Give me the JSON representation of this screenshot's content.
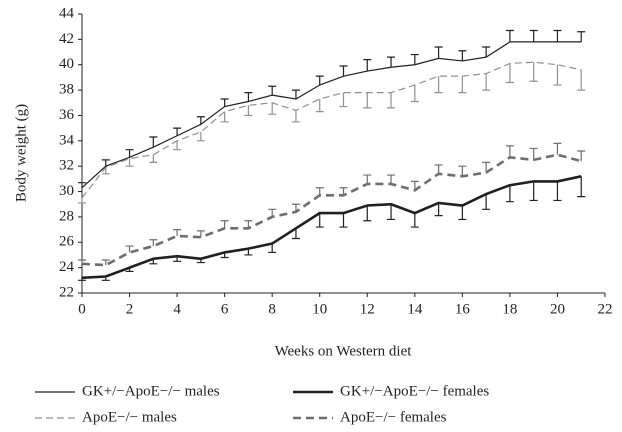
{
  "chart_data": {
    "type": "line",
    "x_label": "Weeks on Western diet",
    "y_label": "Body weight (g)",
    "x": [
      0,
      1,
      2,
      3,
      4,
      5,
      6,
      7,
      8,
      9,
      10,
      11,
      12,
      13,
      14,
      15,
      16,
      17,
      18,
      19,
      20,
      21
    ],
    "xlim": [
      0,
      22
    ],
    "xticks": [
      0,
      2,
      4,
      6,
      8,
      10,
      12,
      14,
      16,
      18,
      20,
      22
    ],
    "ylim": [
      22,
      44
    ],
    "yticks": [
      22,
      24,
      26,
      28,
      30,
      32,
      34,
      36,
      38,
      40,
      42,
      44
    ],
    "series": [
      {
        "name": "GK+/−ApoE−/− males",
        "color": "#231f20",
        "width": 1.2,
        "dashed": false,
        "error_direction": "up",
        "values": [
          30.3,
          32.0,
          32.7,
          33.5,
          34.4,
          35.3,
          36.7,
          37.1,
          37.6,
          37.3,
          38.4,
          39.1,
          39.5,
          39.8,
          40.0,
          40.5,
          40.3,
          40.6,
          41.8,
          41.8,
          41.8,
          41.8
        ],
        "errors": [
          0.4,
          0.5,
          0.6,
          0.8,
          0.6,
          0.6,
          0.6,
          0.7,
          0.7,
          0.7,
          0.7,
          0.8,
          0.9,
          0.8,
          0.8,
          0.9,
          0.8,
          0.8,
          0.9,
          0.9,
          0.9,
          0.8
        ]
      },
      {
        "name": "GK+/−ApoE−/− females",
        "color": "#231f20",
        "width": 2.6,
        "dashed": false,
        "error_direction": "down",
        "values": [
          23.2,
          23.3,
          24.0,
          24.7,
          24.9,
          24.7,
          25.2,
          25.5,
          25.9,
          27.1,
          28.3,
          28.3,
          28.9,
          29.0,
          28.3,
          29.1,
          28.9,
          29.8,
          30.5,
          30.8,
          30.8,
          31.2
        ],
        "errors": [
          0.2,
          0.3,
          0.3,
          0.4,
          0.4,
          0.3,
          0.4,
          0.5,
          0.7,
          0.8,
          1.1,
          1.1,
          1.2,
          1.2,
          1.1,
          1.0,
          1.1,
          1.2,
          1.3,
          1.5,
          1.5,
          1.6
        ]
      },
      {
        "name": "ApoE−/− males",
        "color": "#8f9091",
        "width": 1.2,
        "dashed": true,
        "error_direction": "down",
        "values": [
          29.5,
          31.9,
          32.6,
          32.9,
          34.0,
          34.7,
          36.3,
          36.8,
          37.0,
          36.4,
          37.3,
          37.8,
          37.8,
          37.8,
          38.4,
          39.1,
          39.1,
          39.3,
          40.1,
          40.2,
          40.0,
          39.6
        ],
        "errors": [
          0.4,
          0.5,
          0.6,
          0.6,
          0.7,
          0.7,
          0.8,
          0.8,
          0.9,
          0.9,
          1.0,
          1.1,
          1.2,
          1.2,
          1.3,
          1.3,
          1.3,
          1.3,
          1.5,
          1.5,
          1.6,
          1.6
        ]
      },
      {
        "name": "ApoE−/− females",
        "color": "#6d6e70",
        "width": 2.6,
        "dashed": true,
        "error_direction": "up",
        "values": [
          24.3,
          24.2,
          25.2,
          25.7,
          26.5,
          26.4,
          27.1,
          27.1,
          28.0,
          28.4,
          29.7,
          29.7,
          30.6,
          30.6,
          30.1,
          31.4,
          31.2,
          31.5,
          32.7,
          32.5,
          32.9,
          32.4
        ],
        "errors": [
          0.3,
          0.4,
          0.5,
          0.5,
          0.5,
          0.5,
          0.6,
          0.6,
          0.6,
          0.6,
          0.6,
          0.6,
          0.7,
          0.7,
          0.7,
          0.7,
          0.8,
          0.8,
          0.9,
          0.9,
          0.9,
          0.8
        ]
      }
    ]
  }
}
